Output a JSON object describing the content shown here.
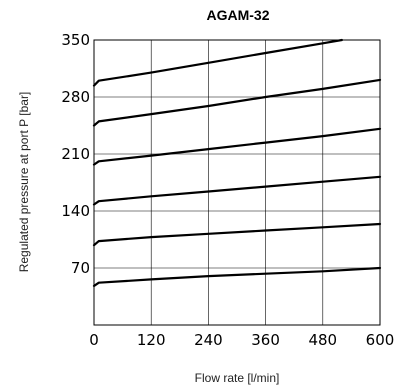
{
  "chart_data": {
    "type": "line",
    "title": "AGAM-32",
    "xlabel": "Flow rate [l/min]",
    "ylabel": "Regulated pressure at port P [bar]",
    "xlim": [
      0,
      600
    ],
    "ylim": [
      0,
      350
    ],
    "xticks": [
      "0",
      "120",
      "240",
      "360",
      "480",
      "600"
    ],
    "yticks": [
      "70",
      "140",
      "210",
      "280",
      "350"
    ],
    "grid": true,
    "series": [
      {
        "x": [
          0,
          10,
          120,
          240,
          360,
          480,
          600
        ],
        "y": [
          48,
          52,
          56,
          60,
          63,
          66,
          70
        ]
      },
      {
        "x": [
          0,
          10,
          120,
          240,
          360,
          480,
          600
        ],
        "y": [
          98,
          103,
          108,
          112,
          116,
          120,
          124
        ]
      },
      {
        "x": [
          0,
          10,
          120,
          240,
          360,
          480,
          600
        ],
        "y": [
          148,
          152,
          158,
          164,
          170,
          176,
          182
        ]
      },
      {
        "x": [
          0,
          10,
          120,
          240,
          360,
          480,
          600
        ],
        "y": [
          197,
          201,
          208,
          216,
          224,
          232,
          241
        ]
      },
      {
        "x": [
          0,
          10,
          120,
          240,
          360,
          480,
          600
        ],
        "y": [
          245,
          250,
          259,
          269,
          280,
          290,
          301
        ]
      },
      {
        "x": [
          0,
          10,
          120,
          240,
          360,
          480,
          520
        ],
        "y": [
          294,
          300,
          310,
          322,
          334,
          346,
          350
        ]
      }
    ]
  }
}
